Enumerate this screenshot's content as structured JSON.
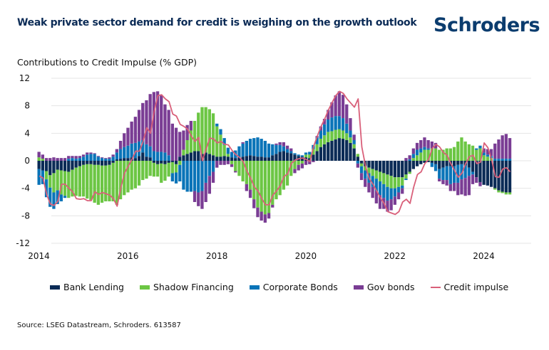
{
  "header": {
    "title": "Weak private sector demand for credit is weighing on the growth outlook",
    "logo": "Schroders"
  },
  "footer": {
    "source": "Source: LSEG Datastream, Schroders. 613587"
  },
  "chart_data": {
    "type": "bar",
    "stacked": true,
    "title": "Weak private sector demand for credit is weighing on the growth outlook",
    "ylabel": "Contributions to Credit Impulse (% GDP)",
    "xlabel": "",
    "ylim": [
      -12,
      12
    ],
    "yticks": [
      12,
      8,
      4,
      0,
      -4,
      -8,
      -12
    ],
    "xticks": [
      "2014",
      "2016",
      "2018",
      "2020",
      "2022",
      "2024"
    ],
    "xrange": [
      "2014-01",
      "2024-08"
    ],
    "frequency": "monthly",
    "grid": true,
    "legend_position": "bottom",
    "series": [
      {
        "name": "Bank Lending",
        "kind": "bar",
        "color": "#0b2b56",
        "values": [
          -1.2,
          -1.4,
          -1.5,
          -2.1,
          -1.8,
          -1.3,
          -1.4,
          -1.5,
          -1.6,
          -1.3,
          -1.0,
          -0.8,
          -0.6,
          -0.5,
          -0.5,
          -0.6,
          -0.6,
          -0.7,
          -0.7,
          -0.6,
          -0.3,
          0.2,
          0.3,
          0.4,
          0.4,
          0.5,
          0.4,
          0.7,
          1.2,
          0.6,
          0.5,
          -0.3,
          -0.5,
          -0.4,
          -0.5,
          -0.3,
          -0.2,
          -0.5,
          0.6,
          0.8,
          1.0,
          1.2,
          1.4,
          1.4,
          1.0,
          1.2,
          1.0,
          0.8,
          0.6,
          0.6,
          0.7,
          0.6,
          0.5,
          0.4,
          0.5,
          0.6,
          0.7,
          0.8,
          0.7,
          0.6,
          0.6,
          0.5,
          0.5,
          0.8,
          1.0,
          1.3,
          1.4,
          1.2,
          1.1,
          0.9,
          0.7,
          0.6,
          0.5,
          0.4,
          0.9,
          1.4,
          2.0,
          2.4,
          2.7,
          2.9,
          3.1,
          3.3,
          3.2,
          3.0,
          2.6,
          1.8,
          0.6,
          -0.4,
          -0.8,
          -1.0,
          -1.2,
          -1.4,
          -1.6,
          -1.8,
          -2.0,
          -2.2,
          -2.4,
          -2.4,
          -2.4,
          -2.0,
          -1.6,
          -1.2,
          -0.8,
          -0.5,
          -0.3,
          -0.2,
          -0.3,
          -0.5,
          -1.2,
          -1.0,
          -0.8,
          -0.8,
          -0.8,
          -0.6,
          -0.5,
          -0.7,
          -1.0,
          -1.6,
          -2.4,
          -3.1,
          -3.5,
          -3.6,
          -3.8,
          -4.0,
          -4.3,
          -4.5,
          -4.6,
          -4.6
        ]
      },
      {
        "name": "Shadow Financing",
        "kind": "bar",
        "color": "#6cc644",
        "values": [
          0.5,
          0.3,
          -1.2,
          -1.8,
          -2.8,
          -3.0,
          -3.5,
          -3.6,
          -3.8,
          -3.9,
          -4.1,
          -4.4,
          -4.6,
          -5.0,
          -5.2,
          -5.5,
          -5.8,
          -5.4,
          -5.2,
          -5.3,
          -5.6,
          -6.4,
          -5.6,
          -5.0,
          -4.6,
          -4.2,
          -4.0,
          -3.6,
          -2.8,
          -2.6,
          -2.2,
          -2.0,
          -1.8,
          -2.8,
          -2.4,
          -2.0,
          -1.6,
          -1.2,
          -0.6,
          0.8,
          2.0,
          3.2,
          4.4,
          5.6,
          6.8,
          6.6,
          6.5,
          6.1,
          4.4,
          3.2,
          1.6,
          0.4,
          -0.5,
          -1.5,
          -2.2,
          -3.0,
          -3.4,
          -4.2,
          -5.6,
          -6.8,
          -7.4,
          -7.8,
          -7.6,
          -6.4,
          -5.6,
          -5.0,
          -4.2,
          -3.6,
          -2.2,
          -1.2,
          -0.6,
          -0.4,
          0.4,
          0.5,
          0.8,
          1.0,
          1.2,
          1.3,
          1.5,
          1.4,
          1.4,
          1.3,
          1.2,
          1.0,
          0.8,
          0.6,
          0.4,
          -0.4,
          -0.6,
          -0.8,
          -1.0,
          -1.2,
          -1.4,
          -1.6,
          -1.8,
          -1.8,
          -1.6,
          -1.4,
          -1.2,
          -0.6,
          -0.3,
          0.4,
          0.8,
          1.2,
          1.6,
          1.6,
          1.8,
          1.8,
          1.6,
          1.6,
          1.8,
          1.8,
          2.0,
          2.8,
          3.4,
          2.8,
          2.4,
          2.2,
          1.6,
          1.8,
          0.8,
          0.6,
          0.4,
          -0.2,
          -0.3,
          -0.2,
          -0.3,
          -0.3
        ]
      },
      {
        "name": "Corporate Bonds",
        "kind": "bar",
        "color": "#0a74b8",
        "values": [
          -2.3,
          -2.0,
          -2.6,
          -2.8,
          -2.4,
          -2.0,
          -1.0,
          -0.3,
          0.3,
          0.4,
          0.3,
          0.4,
          0.6,
          0.9,
          1.0,
          1.0,
          0.6,
          0.4,
          0.3,
          0.3,
          0.6,
          1.0,
          1.4,
          1.6,
          1.8,
          2.0,
          2.2,
          2.1,
          1.8,
          1.8,
          1.6,
          1.4,
          1.3,
          1.3,
          1.2,
          0.8,
          -1.2,
          -1.6,
          -2.4,
          -4.2,
          -4.5,
          -4.5,
          -4.4,
          -4.6,
          -4.4,
          -3.2,
          -2.2,
          -1.6,
          0.4,
          0.8,
          1.0,
          0.9,
          0.8,
          1.1,
          1.6,
          1.9,
          2.2,
          2.4,
          2.6,
          2.8,
          2.6,
          2.4,
          2.0,
          1.6,
          1.3,
          1.0,
          0.7,
          0.5,
          0.3,
          0.2,
          0.2,
          0.2,
          0.3,
          0.4,
          0.6,
          1.0,
          1.2,
          1.6,
          1.8,
          2.0,
          2.0,
          1.9,
          1.8,
          1.4,
          1.0,
          0.6,
          -0.4,
          -1.0,
          -1.2,
          -1.4,
          -1.6,
          -1.8,
          -2.0,
          -2.0,
          -2.0,
          -1.6,
          -1.2,
          -0.8,
          -0.4,
          -0.2,
          0.2,
          0.6,
          0.8,
          0.6,
          0.4,
          0.2,
          -0.6,
          -1.0,
          -1.4,
          -1.8,
          -2.0,
          -2.6,
          -2.4,
          -2.6,
          -2.2,
          -1.8,
          -1.2,
          -0.4,
          0.2,
          0.4,
          0.4,
          0.3,
          0.3,
          0.3,
          0.3,
          0.3,
          0.3,
          0.3
        ]
      },
      {
        "name": "Gov bonds",
        "kind": "bar",
        "color": "#7a3d94",
        "values": [
          0.8,
          0.6,
          0.4,
          0.4,
          0.5,
          0.4,
          0.4,
          0.4,
          0.4,
          0.3,
          0.4,
          0.3,
          0.3,
          0.3,
          0.2,
          0.1,
          0.1,
          0.1,
          0.1,
          0.2,
          0.3,
          0.5,
          1.2,
          2.0,
          2.6,
          3.2,
          3.8,
          4.6,
          5.4,
          6.4,
          7.6,
          8.6,
          8.8,
          8.2,
          7.0,
          6.6,
          5.4,
          4.8,
          3.6,
          2.8,
          2.2,
          1.4,
          -1.6,
          -2.0,
          -2.6,
          -2.8,
          -2.6,
          -1.6,
          -1.0,
          -0.6,
          -0.6,
          -0.5,
          -0.4,
          -0.2,
          0.0,
          0.2,
          -1.0,
          -1.2,
          -1.3,
          -1.4,
          -1.3,
          -1.2,
          -0.8,
          -0.4,
          0.2,
          0.4,
          0.6,
          0.5,
          0.4,
          -0.6,
          -0.8,
          -0.7,
          -0.6,
          -0.5,
          -0.2,
          0.2,
          0.6,
          0.8,
          1.4,
          2.2,
          3.0,
          3.6,
          3.4,
          2.8,
          1.8,
          0.8,
          -0.6,
          -1.0,
          -1.2,
          -1.4,
          -1.6,
          -1.8,
          -2.0,
          -1.6,
          -1.6,
          -1.6,
          -1.2,
          -1.0,
          -0.8,
          0.4,
          0.6,
          0.8,
          1.0,
          1.2,
          1.4,
          1.2,
          1.0,
          0.8,
          -0.4,
          -0.6,
          -0.8,
          -1.0,
          -1.2,
          -1.8,
          -2.2,
          -2.6,
          -2.8,
          -1.4,
          -0.8,
          -0.6,
          0.6,
          0.8,
          1.0,
          2.2,
          2.8,
          3.4,
          3.6,
          3.0
        ]
      },
      {
        "name": "Credit impulse",
        "kind": "line",
        "color": "#d9607a",
        "values": [
          -2.2,
          -2.5,
          -4.9,
          -6.3,
          -6.5,
          -5.9,
          -3.4,
          -3.4,
          -4.0,
          -4.5,
          -5.5,
          -5.6,
          -5.5,
          -5.8,
          -5.8,
          -4.5,
          -4.9,
          -4.6,
          -4.8,
          -5.0,
          -5.5,
          -6.6,
          -3.9,
          -1.8,
          -0.8,
          0.2,
          1.4,
          1.4,
          2.8,
          4.8,
          4.0,
          7.2,
          9.5,
          9.6,
          9.0,
          8.6,
          6.8,
          6.5,
          5.3,
          5.0,
          4.6,
          3.6,
          2.8,
          3.4,
          0.0,
          1.7,
          3.3,
          3.2,
          2.6,
          2.8,
          2.4,
          2.3,
          1.5,
          0.9,
          0.5,
          -0.1,
          -1.5,
          -2.5,
          -3.8,
          -4.4,
          -5.5,
          -6.4,
          -6.4,
          -5.0,
          -4.4,
          -3.6,
          -2.3,
          -1.9,
          -0.4,
          0.1,
          0.3,
          0.4,
          0.2,
          -0.1,
          2.1,
          3.6,
          5.0,
          6.1,
          7.4,
          8.5,
          9.5,
          10.1,
          9.8,
          9.0,
          8.4,
          7.8,
          9.0,
          2.0,
          -0.8,
          -2.6,
          -3.4,
          -4.4,
          -5.4,
          -6.2,
          -7.4,
          -7.6,
          -7.8,
          -7.4,
          -6.0,
          -5.6,
          -6.2,
          -3.8,
          -2.0,
          -1.6,
          -0.4,
          0.2,
          1.8,
          2.4,
          2.0,
          1.2,
          0.8,
          -0.4,
          -1.4,
          -2.4,
          -1.8,
          -0.4,
          0.6,
          0.8,
          -0.4,
          -0.2,
          2.6,
          1.9,
          0.2,
          -2.3,
          -2.4,
          -1.2,
          -1.0,
          -1.6
        ]
      }
    ]
  }
}
